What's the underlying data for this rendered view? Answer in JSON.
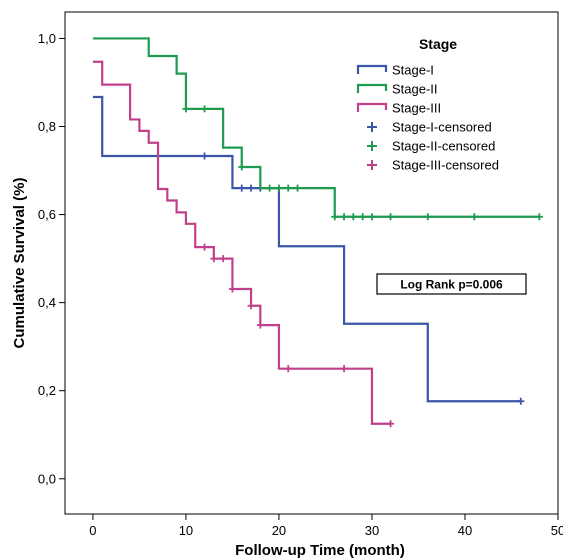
{
  "chart_data": {
    "type": "line",
    "step": true,
    "xlabel": "Follow-up Time (month)",
    "ylabel": "Cumulative Survival (%)",
    "xlim": [
      -3,
      50
    ],
    "ylim": [
      -0.08,
      1.06
    ],
    "xticks": [
      0,
      10,
      20,
      30,
      40,
      50
    ],
    "xtick_labels": [
      "0",
      "10",
      "20",
      "30",
      "40",
      "50"
    ],
    "yticks": [
      0.0,
      0.2,
      0.4,
      0.6,
      0.8,
      1.0
    ],
    "ytick_labels": [
      "0,0",
      "0,2",
      "0,4",
      "0,6",
      "0,8",
      "1,0"
    ],
    "grid": false,
    "legend": {
      "title": "Stage",
      "position": "top-right",
      "entries": [
        "Stage-I",
        "Stage-II",
        "Stage-III",
        "Stage-I-censored",
        "Stage-II-censored",
        "Stage-III-censored"
      ]
    },
    "annotation": "Log Rank p=0.006",
    "series": [
      {
        "name": "Stage-I",
        "color": "#3b55a8",
        "steps": [
          [
            0,
            0.867
          ],
          [
            1,
            0.733
          ],
          [
            15,
            0.66
          ],
          [
            20,
            0.528
          ],
          [
            27,
            0.352
          ],
          [
            36,
            0.176
          ],
          [
            46,
            0.176
          ]
        ],
        "censored": [
          [
            12,
            0.733
          ],
          [
            16,
            0.66
          ],
          [
            17,
            0.66
          ],
          [
            18,
            0.66
          ],
          [
            46,
            0.176
          ]
        ]
      },
      {
        "name": "Stage-II",
        "color": "#1e9b4e",
        "steps": [
          [
            0,
            1.0
          ],
          [
            6,
            0.96
          ],
          [
            9,
            0.92
          ],
          [
            10,
            0.84
          ],
          [
            14,
            0.752
          ],
          [
            16,
            0.708
          ],
          [
            18,
            0.66
          ],
          [
            26,
            0.595
          ],
          [
            48,
            0.595
          ]
        ],
        "censored": [
          [
            10,
            0.84
          ],
          [
            12,
            0.84
          ],
          [
            16,
            0.708
          ],
          [
            19,
            0.66
          ],
          [
            20,
            0.66
          ],
          [
            21,
            0.66
          ],
          [
            22,
            0.66
          ],
          [
            26,
            0.595
          ],
          [
            27,
            0.595
          ],
          [
            28,
            0.595
          ],
          [
            29,
            0.595
          ],
          [
            30,
            0.595
          ],
          [
            32,
            0.595
          ],
          [
            36,
            0.595
          ],
          [
            41,
            0.595
          ],
          [
            48,
            0.595
          ]
        ]
      },
      {
        "name": "Stage-III",
        "color": "#c0408b",
        "steps": [
          [
            0,
            0.947
          ],
          [
            1,
            0.895
          ],
          [
            4,
            0.816
          ],
          [
            5,
            0.79
          ],
          [
            6,
            0.763
          ],
          [
            7,
            0.658
          ],
          [
            8,
            0.632
          ],
          [
            9,
            0.605
          ],
          [
            10,
            0.579
          ],
          [
            11,
            0.526
          ],
          [
            13,
            0.5
          ],
          [
            15,
            0.431
          ],
          [
            17,
            0.393
          ],
          [
            18,
            0.349
          ],
          [
            20,
            0.25
          ],
          [
            30,
            0.125
          ],
          [
            32,
            0.125
          ]
        ],
        "censored": [
          [
            12,
            0.526
          ],
          [
            13,
            0.5
          ],
          [
            14,
            0.5
          ],
          [
            15,
            0.431
          ],
          [
            17,
            0.393
          ],
          [
            18,
            0.349
          ],
          [
            21,
            0.25
          ],
          [
            27,
            0.25
          ],
          [
            32,
            0.125
          ]
        ]
      }
    ]
  }
}
